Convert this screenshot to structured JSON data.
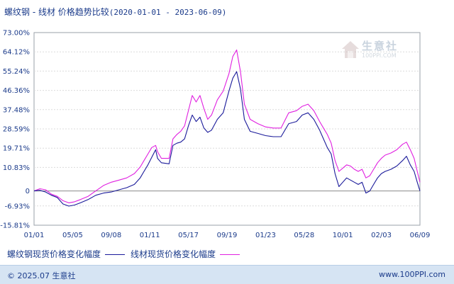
{
  "chart_data": {
    "type": "line",
    "title": "螺纹钢 - 线材  价格趋势比较",
    "date_range": "(2020-01-01 - 2023-06-09)",
    "x_tick_labels": [
      "01/01",
      "05/05",
      "09/08",
      "01/11",
      "05/17",
      "09/19",
      "01/23",
      "05/28",
      "10/01",
      "02/03",
      "06/09"
    ],
    "y_tick_labels": [
      "73.00%",
      "64.12%",
      "55.24%",
      "46.36%",
      "37.48%",
      "28.59%",
      "19.71%",
      "10.83%",
      "0",
      "-6.93%",
      "-15.81%"
    ],
    "y_tick_values": [
      73.0,
      64.12,
      55.24,
      46.36,
      37.48,
      28.59,
      19.71,
      10.83,
      0,
      -6.93,
      -15.81
    ],
    "ylim": [
      -15.81,
      73.0
    ],
    "xlim": [
      0,
      10
    ],
    "grid": "horizontal",
    "zero_line": true,
    "series": [
      {
        "name": "螺纹钢现货价格变化幅度",
        "color": "#1a1a9a",
        "points": [
          [
            0,
            0
          ],
          [
            0.15,
            0.3
          ],
          [
            0.3,
            -0.5
          ],
          [
            0.45,
            -2
          ],
          [
            0.6,
            -3
          ],
          [
            0.75,
            -6
          ],
          [
            0.9,
            -7
          ],
          [
            1.05,
            -6.5
          ],
          [
            1.2,
            -5.5
          ],
          [
            1.4,
            -4
          ],
          [
            1.6,
            -2
          ],
          [
            1.8,
            -1
          ],
          [
            2.0,
            -0.5
          ],
          [
            2.2,
            0.5
          ],
          [
            2.4,
            1.5
          ],
          [
            2.6,
            3
          ],
          [
            2.75,
            6
          ],
          [
            2.85,
            9
          ],
          [
            2.95,
            12
          ],
          [
            3.05,
            15.5
          ],
          [
            3.15,
            19
          ],
          [
            3.2,
            15
          ],
          [
            3.3,
            13
          ],
          [
            3.5,
            12.5
          ],
          [
            3.6,
            21
          ],
          [
            3.7,
            22
          ],
          [
            3.8,
            22.5
          ],
          [
            3.9,
            24
          ],
          [
            4.0,
            30
          ],
          [
            4.1,
            35
          ],
          [
            4.2,
            32
          ],
          [
            4.3,
            34
          ],
          [
            4.4,
            29
          ],
          [
            4.5,
            27
          ],
          [
            4.6,
            28
          ],
          [
            4.75,
            33
          ],
          [
            4.9,
            36
          ],
          [
            5.05,
            46
          ],
          [
            5.15,
            52
          ],
          [
            5.25,
            55
          ],
          [
            5.35,
            47
          ],
          [
            5.45,
            33
          ],
          [
            5.6,
            27.5
          ],
          [
            5.8,
            26.5
          ],
          [
            6.0,
            25.5
          ],
          [
            6.2,
            25
          ],
          [
            6.4,
            25
          ],
          [
            6.6,
            31
          ],
          [
            6.8,
            32
          ],
          [
            6.95,
            35
          ],
          [
            7.1,
            36
          ],
          [
            7.25,
            33
          ],
          [
            7.4,
            28
          ],
          [
            7.5,
            24
          ],
          [
            7.6,
            20
          ],
          [
            7.7,
            17
          ],
          [
            7.8,
            8
          ],
          [
            7.9,
            2
          ],
          [
            8.0,
            4
          ],
          [
            8.1,
            6
          ],
          [
            8.2,
            5
          ],
          [
            8.3,
            4
          ],
          [
            8.4,
            3
          ],
          [
            8.5,
            4
          ],
          [
            8.6,
            -1
          ],
          [
            8.7,
            0
          ],
          [
            8.8,
            3
          ],
          [
            8.9,
            6
          ],
          [
            9.0,
            8
          ],
          [
            9.1,
            9
          ],
          [
            9.25,
            10
          ],
          [
            9.4,
            11.5
          ],
          [
            9.55,
            14
          ],
          [
            9.65,
            16
          ],
          [
            9.75,
            12
          ],
          [
            9.85,
            9
          ],
          [
            9.93,
            4
          ],
          [
            10.0,
            0
          ]
        ]
      },
      {
        "name": "线材现货价格变化幅度",
        "color": "#e020e0",
        "points": [
          [
            0,
            0
          ],
          [
            0.15,
            1
          ],
          [
            0.3,
            0.5
          ],
          [
            0.45,
            -1.5
          ],
          [
            0.6,
            -2.5
          ],
          [
            0.75,
            -4.5
          ],
          [
            0.9,
            -5.5
          ],
          [
            1.05,
            -5
          ],
          [
            1.2,
            -4
          ],
          [
            1.4,
            -2.5
          ],
          [
            1.6,
            0
          ],
          [
            1.8,
            2.5
          ],
          [
            2.0,
            4
          ],
          [
            2.2,
            5
          ],
          [
            2.4,
            6
          ],
          [
            2.6,
            8
          ],
          [
            2.75,
            11
          ],
          [
            2.85,
            14
          ],
          [
            2.95,
            17
          ],
          [
            3.05,
            20
          ],
          [
            3.15,
            21
          ],
          [
            3.2,
            18
          ],
          [
            3.3,
            15
          ],
          [
            3.5,
            15
          ],
          [
            3.6,
            24
          ],
          [
            3.7,
            26
          ],
          [
            3.8,
            27.5
          ],
          [
            3.9,
            30
          ],
          [
            4.0,
            37
          ],
          [
            4.1,
            44
          ],
          [
            4.2,
            41
          ],
          [
            4.3,
            44
          ],
          [
            4.4,
            38
          ],
          [
            4.5,
            33
          ],
          [
            4.6,
            35
          ],
          [
            4.75,
            42
          ],
          [
            4.9,
            46
          ],
          [
            5.05,
            54
          ],
          [
            5.15,
            62
          ],
          [
            5.25,
            65
          ],
          [
            5.35,
            55
          ],
          [
            5.45,
            40
          ],
          [
            5.6,
            33
          ],
          [
            5.8,
            31
          ],
          [
            6.0,
            29.5
          ],
          [
            6.2,
            29
          ],
          [
            6.4,
            29
          ],
          [
            6.6,
            36
          ],
          [
            6.8,
            37
          ],
          [
            6.95,
            39
          ],
          [
            7.1,
            40
          ],
          [
            7.25,
            37
          ],
          [
            7.4,
            32
          ],
          [
            7.5,
            29
          ],
          [
            7.6,
            26
          ],
          [
            7.7,
            22
          ],
          [
            7.8,
            14
          ],
          [
            7.9,
            9
          ],
          [
            8.0,
            10.5
          ],
          [
            8.1,
            12
          ],
          [
            8.2,
            11.5
          ],
          [
            8.3,
            10
          ],
          [
            8.4,
            9
          ],
          [
            8.5,
            10
          ],
          [
            8.6,
            6
          ],
          [
            8.7,
            7
          ],
          [
            8.8,
            10
          ],
          [
            8.9,
            13
          ],
          [
            9.0,
            15
          ],
          [
            9.1,
            16.5
          ],
          [
            9.25,
            17.5
          ],
          [
            9.4,
            19
          ],
          [
            9.55,
            21.5
          ],
          [
            9.65,
            22.5
          ],
          [
            9.75,
            19
          ],
          [
            9.85,
            15
          ],
          [
            9.93,
            9
          ],
          [
            10.0,
            4
          ]
        ]
      }
    ]
  },
  "footer": {
    "copyright": "© 2025.07 生意社",
    "url": "www.100PPI.com"
  },
  "watermark": {
    "name": "生意社",
    "url": "100PPI.COM"
  }
}
